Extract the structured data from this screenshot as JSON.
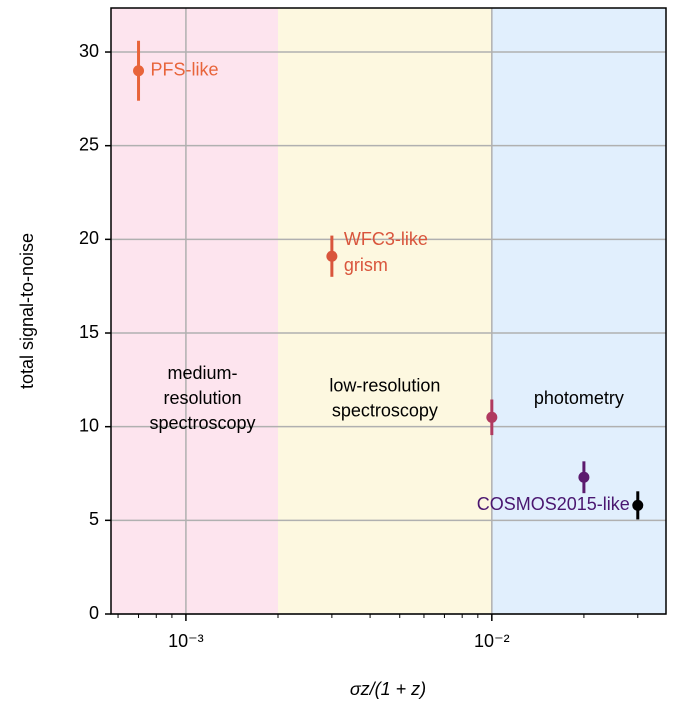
{
  "chart_data": {
    "type": "errorbar",
    "xlabel": "σz/(1 + z)",
    "ylabel": "total signal-to-noise",
    "xscale": "log",
    "xlim": [
      0.000569,
      0.0371
    ],
    "ylim": [
      0,
      32.35
    ],
    "xticks": [
      {
        "value": 0.001,
        "label": "10⁻³"
      },
      {
        "value": 0.01,
        "label": "10⁻²"
      }
    ],
    "xticks_minor": [
      0.0006,
      0.0007,
      0.0008,
      0.0009,
      0.002,
      0.003,
      0.004,
      0.005,
      0.006,
      0.007,
      0.008,
      0.009,
      0.02,
      0.03
    ],
    "yticks": [
      0,
      5,
      10,
      15,
      20,
      25,
      30
    ],
    "grid": true,
    "regions": [
      {
        "x": [
          0.000569,
          0.002
        ],
        "color": "#fde4ee",
        "label": [
          "medium-",
          "resolution",
          "spectroscopy"
        ]
      },
      {
        "x": [
          0.002,
          0.01
        ],
        "color": "#fdf8e0",
        "label": [
          "low-resolution",
          "spectroscopy"
        ]
      },
      {
        "x": [
          0.01,
          0.0371
        ],
        "color": "#e1effd",
        "label": [
          "photometry"
        ]
      }
    ],
    "points": [
      {
        "name": [
          "PFS-like"
        ],
        "color": "#e8643a",
        "x": 0.0007,
        "y": 29.0,
        "yerr": 1.6
      },
      {
        "name": [
          "WFC3-like",
          "grism"
        ],
        "color": "#d9553c",
        "x": 0.003,
        "y": 19.1,
        "yerr": 1.1
      },
      {
        "color": "#b03a60",
        "x": 0.01,
        "y": 10.5,
        "yerr": 0.95
      },
      {
        "color": "#5c1a6e",
        "x": 0.02,
        "y": 7.3,
        "yerr": 0.85
      },
      {
        "name": [
          "COSMOS2015-like"
        ],
        "color": "#000000",
        "label_color": "#4a1670",
        "x": 0.03,
        "y": 5.8,
        "yerr": 0.75
      }
    ]
  }
}
